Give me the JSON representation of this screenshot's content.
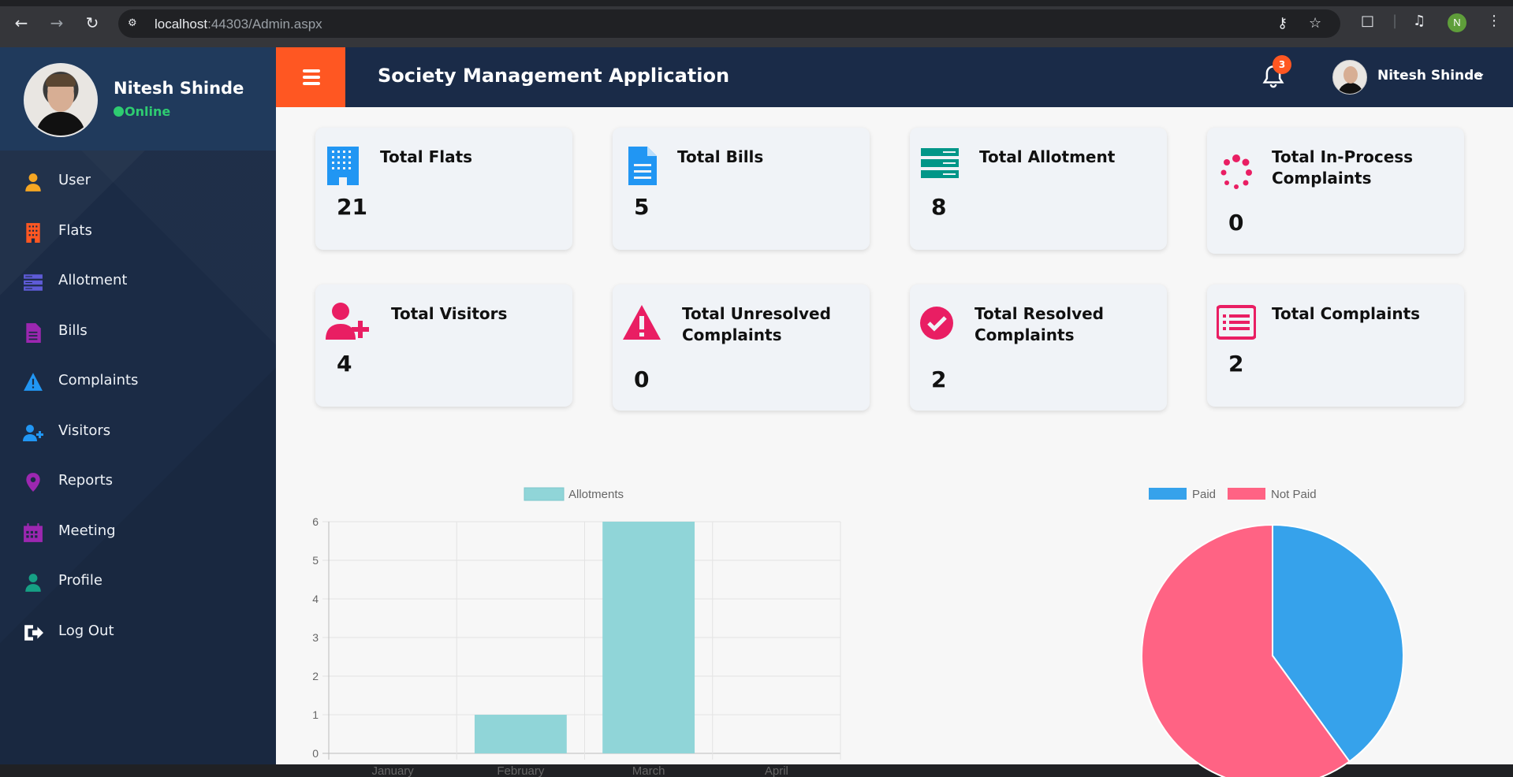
{
  "browser": {
    "url_host": "localhost",
    "url_rest": ":44303/Admin.aspx",
    "profile_initial": "N"
  },
  "sidebar": {
    "user_name": "Nitesh Shinde",
    "status": "Online",
    "items": [
      {
        "label": "User",
        "icon": "user-icon",
        "color": "#f5a623"
      },
      {
        "label": "Flats",
        "icon": "building-icon",
        "color": "#ff5722"
      },
      {
        "label": "Allotment",
        "icon": "server-icon",
        "color": "#5e5bd6"
      },
      {
        "label": "Bills",
        "icon": "file-icon",
        "color": "#9c27b0"
      },
      {
        "label": "Complaints",
        "icon": "warning-icon",
        "color": "#2196f3"
      },
      {
        "label": "Visitors",
        "icon": "user-plus-icon",
        "color": "#2196f3"
      },
      {
        "label": "Reports",
        "icon": "map-pin-icon",
        "color": "#9c27b0"
      },
      {
        "label": "Meeting",
        "icon": "calendar-icon",
        "color": "#9c27b0"
      },
      {
        "label": "Profile",
        "icon": "user-icon",
        "color": "#16a085"
      },
      {
        "label": "Log Out",
        "icon": "logout-icon",
        "color": "#ffffff"
      }
    ]
  },
  "header": {
    "title": "Society Management Application",
    "notification_count": "3",
    "user_name": "Nitesh Shinde"
  },
  "cards": [
    {
      "title": "Total Flats",
      "value": "21",
      "icon": "building-icon",
      "color": "#2196f3"
    },
    {
      "title": "Total Bills",
      "value": "5",
      "icon": "file-icon",
      "color": "#2196f3"
    },
    {
      "title": "Total Allotment",
      "value": "8",
      "icon": "server-icon",
      "color": "#009688"
    },
    {
      "title": "Total In-Process Complaints",
      "value": "0",
      "icon": "spinner-icon",
      "color": "#e91e63"
    },
    {
      "title": "Total Visitors",
      "value": "4",
      "icon": "user-plus-icon",
      "color": "#e91e63"
    },
    {
      "title": "Total Unresolved Complaints",
      "value": "0",
      "icon": "warning-icon",
      "color": "#e91e63"
    },
    {
      "title": "Total Resolved Complaints",
      "value": "2",
      "icon": "check-circle-icon",
      "color": "#e91e63"
    },
    {
      "title": "Total Complaints",
      "value": "2",
      "icon": "list-alt-icon",
      "color": "#e91e63"
    }
  ],
  "chart_data": [
    {
      "type": "bar",
      "categories": [
        "January",
        "February",
        "March",
        "April"
      ],
      "series": [
        {
          "name": "Allotments",
          "values": [
            0,
            1,
            6,
            0
          ],
          "color": "#90d5d8"
        }
      ],
      "ylim": [
        0,
        6
      ],
      "yticks": [
        "0",
        "1",
        "2",
        "3",
        "4",
        "5",
        "6"
      ],
      "legend": "top",
      "grid": true
    },
    {
      "type": "pie",
      "categories": [
        "Paid",
        "Not Paid"
      ],
      "values": [
        2,
        3
      ],
      "colors": [
        "#36a2eb",
        "#ff6384"
      ],
      "legend": "top"
    }
  ]
}
